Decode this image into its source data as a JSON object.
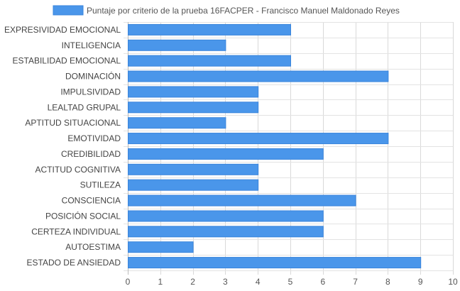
{
  "chart_data": {
    "type": "bar",
    "orientation": "horizontal",
    "categories": [
      "EXPRESIVIDAD EMOCIONAL",
      "INTELIGENCIA",
      "ESTABILIDAD EMOCIONAL",
      "DOMINACIÓN",
      "IMPULSIVIDAD",
      "LEALTAD GRUPAL",
      "APTITUD SITUACIONAL",
      "EMOTIVIDAD",
      "CREDIBILIDAD",
      "ACTITUD COGNITIVA",
      "SUTILEZA",
      "CONSCIENCIA",
      "POSICIÓN SOCIAL",
      "CERTEZA INDIVIDUAL",
      "AUTOESTIMA",
      "ESTADO DE ANSIEDAD"
    ],
    "series": [
      {
        "name": "Puntaje por criterio de la prueba 16FACPER - Francisco Manuel Maldonado Reyes",
        "values": [
          5,
          3,
          5,
          8,
          4,
          4,
          3,
          8,
          6,
          4,
          4,
          7,
          6,
          6,
          2,
          9
        ],
        "color": "#4a96ea",
        "border_color": "#3a85dc"
      }
    ],
    "xlim": [
      0,
      10
    ],
    "x_ticks": [
      "0",
      "1",
      "2",
      "3",
      "4",
      "5",
      "6",
      "7",
      "8",
      "9",
      "10"
    ],
    "grid": true,
    "legend_position": "top",
    "title": "",
    "xlabel": "",
    "ylabel": ""
  }
}
